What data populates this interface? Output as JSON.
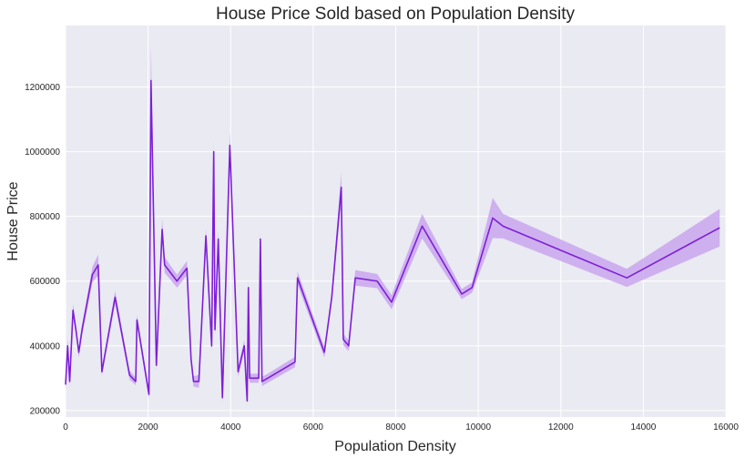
{
  "chart_data": {
    "type": "line",
    "title": "House Price Sold based on Population Density",
    "xlabel": "Population Density",
    "ylabel": "House Price",
    "xlim": [
      0,
      16000
    ],
    "ylim": [
      180000,
      1390000
    ],
    "xticks": [
      0,
      2000,
      4000,
      6000,
      8000,
      10000,
      12000,
      14000,
      16000
    ],
    "yticks": [
      200000,
      400000,
      600000,
      800000,
      1000000,
      1200000
    ],
    "grid": true,
    "legend": "none",
    "colors": {
      "background": "#eaeaf2",
      "grid": "#ffffff",
      "line": "#7e1fd6",
      "band": "#c9a6ee"
    },
    "series": [
      {
        "x": [
          0,
          50,
          100,
          180,
          250,
          320,
          400,
          650,
          790,
          880,
          1200,
          1550,
          1700,
          1730,
          2020,
          2070,
          2200,
          2340,
          2400,
          2700,
          2940,
          3040,
          3100,
          3230,
          3400,
          3540,
          3590,
          3620,
          3700,
          3800,
          3980,
          4180,
          4330,
          4400,
          4430,
          4460,
          4680,
          4720,
          4760,
          4900,
          5560,
          5620,
          6270,
          6450,
          6680,
          6730,
          6860,
          7020,
          7550,
          7900,
          8640,
          9600,
          9850,
          10350,
          10600,
          13600,
          15850
        ],
        "y": [
          280000,
          400000,
          290000,
          510000,
          450000,
          380000,
          450000,
          620000,
          650000,
          320000,
          550000,
          310000,
          290000,
          480000,
          250000,
          1220000,
          340000,
          760000,
          650000,
          600000,
          640000,
          360000,
          290000,
          290000,
          740000,
          400000,
          1000000,
          450000,
          730000,
          240000,
          1020000,
          320000,
          400000,
          230000,
          580000,
          300000,
          300000,
          730000,
          290000,
          300000,
          350000,
          610000,
          380000,
          550000,
          890000,
          420000,
          400000,
          610000,
          600000,
          535000,
          770000,
          560000,
          580000,
          795000,
          770000,
          610000,
          765000
        ],
        "band": [
          18000,
          22000,
          15000,
          20000,
          14000,
          16000,
          18000,
          24000,
          32000,
          12000,
          20000,
          14000,
          12000,
          16000,
          14000,
          110000,
          16000,
          34000,
          24000,
          20000,
          22000,
          18000,
          16000,
          20000,
          22000,
          18000,
          36000,
          18000,
          28000,
          14000,
          40000,
          16000,
          18000,
          14000,
          22000,
          14000,
          14000,
          22000,
          14000,
          14000,
          16000,
          20000,
          16000,
          18000,
          45000,
          18000,
          16000,
          24000,
          22000,
          22000,
          38000,
          16000,
          16000,
          62000,
          38000,
          28000,
          58000
        ]
      }
    ]
  }
}
